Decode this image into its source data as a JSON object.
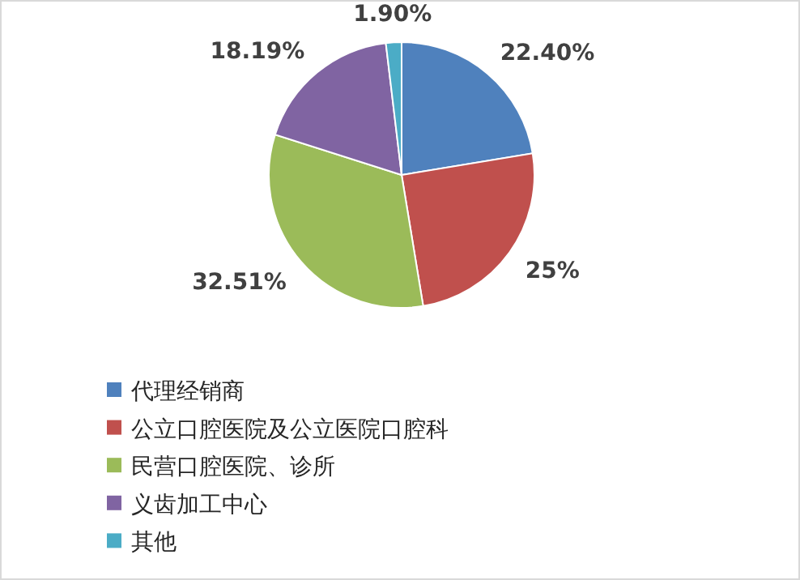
{
  "chart_data": {
    "type": "pie",
    "categories": [
      "代理经销商",
      "公立口腔医院及公立医院口腔科",
      "民营口腔医院、诊所",
      "义齿加工中心",
      "其他"
    ],
    "values": [
      22.4,
      25,
      32.51,
      18.19,
      1.9
    ],
    "colors": [
      "#4f81bd",
      "#c0504d",
      "#9bbb59",
      "#8064a2",
      "#4bacc6"
    ],
    "value_labels": [
      "22.40%",
      "25%",
      "32.51%",
      "18.19%",
      "1.90%"
    ],
    "legend": "bottom"
  }
}
